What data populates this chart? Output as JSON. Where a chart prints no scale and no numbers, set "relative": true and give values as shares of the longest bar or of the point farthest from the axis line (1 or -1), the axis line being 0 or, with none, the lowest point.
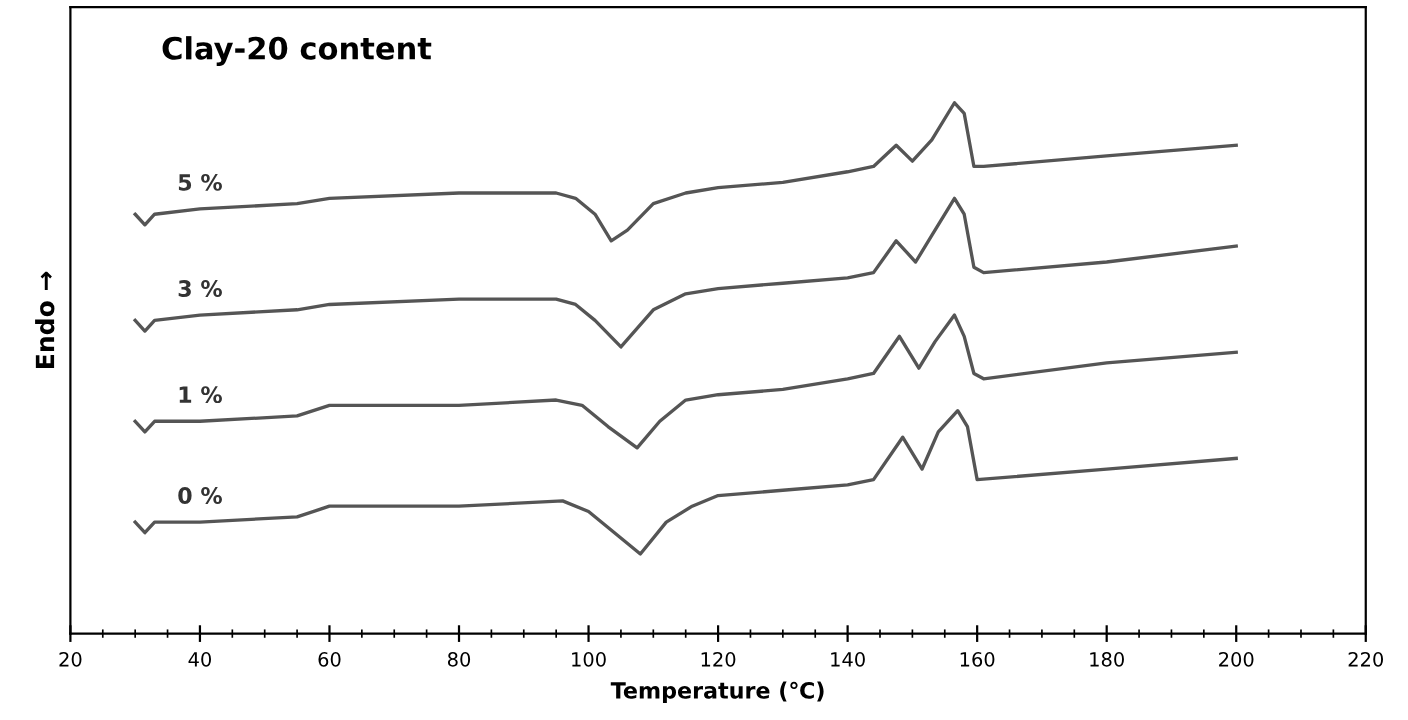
{
  "chart_data": {
    "type": "line",
    "relative": true,
    "title": "Clay-20 content",
    "xlabel": "Temperature (℃)",
    "ylabel": "Endo →",
    "xlim": [
      20,
      220
    ],
    "xticks": [
      20,
      40,
      60,
      80,
      100,
      120,
      140,
      160,
      180,
      200,
      220
    ],
    "legend": false,
    "grid": false,
    "marker": "none",
    "line_style": "solid",
    "tick_labels": "x",
    "series": [
      {
        "name": "5 %",
        "color": "#555555",
        "x": [
          30,
          31.5,
          33,
          40,
          55,
          60,
          80,
          95,
          98,
          101,
          103.5,
          106,
          110,
          115,
          120,
          130,
          140,
          144,
          147.5,
          150,
          153,
          156.5,
          158,
          159.5,
          161,
          180,
          200
        ],
        "values": [
          0.79,
          0.77,
          0.79,
          0.8,
          0.81,
          0.82,
          0.83,
          0.83,
          0.82,
          0.79,
          0.74,
          0.76,
          0.81,
          0.83,
          0.84,
          0.85,
          0.87,
          0.88,
          0.92,
          0.89,
          0.93,
          1.0,
          0.98,
          0.88,
          0.88,
          0.9,
          0.92
        ]
      },
      {
        "name": "3 %",
        "color": "#555555",
        "x": [
          30,
          31.5,
          33,
          40,
          55,
          60,
          80,
          95,
          98,
          101,
          105,
          110,
          115,
          120,
          130,
          140,
          144,
          147.5,
          150.5,
          153,
          156.5,
          158,
          159.5,
          161,
          180,
          200
        ],
        "values": [
          0.59,
          0.57,
          0.59,
          0.6,
          0.61,
          0.62,
          0.63,
          0.63,
          0.62,
          0.59,
          0.54,
          0.61,
          0.64,
          0.65,
          0.66,
          0.67,
          0.68,
          0.74,
          0.7,
          0.75,
          0.82,
          0.79,
          0.69,
          0.68,
          0.7,
          0.73
        ]
      },
      {
        "name": "1 %",
        "color": "#555555",
        "x": [
          30,
          31.5,
          33,
          40,
          55,
          60,
          80,
          95,
          99,
          103,
          107.5,
          111,
          115,
          120,
          130,
          140,
          144,
          148,
          151,
          153.5,
          156.5,
          158,
          159.5,
          161,
          180,
          200
        ],
        "values": [
          0.4,
          0.38,
          0.4,
          0.4,
          0.41,
          0.43,
          0.43,
          0.44,
          0.43,
          0.39,
          0.35,
          0.4,
          0.44,
          0.45,
          0.46,
          0.48,
          0.49,
          0.56,
          0.5,
          0.55,
          0.6,
          0.56,
          0.49,
          0.48,
          0.51,
          0.53
        ]
      },
      {
        "name": "0 %",
        "color": "#555555",
        "x": [
          30,
          31.5,
          33,
          40,
          55,
          60,
          80,
          96,
          100,
          104,
          108,
          112,
          116,
          120,
          130,
          140,
          144,
          148.5,
          151.5,
          154,
          157,
          158.5,
          160,
          180,
          200
        ],
        "values": [
          0.21,
          0.19,
          0.21,
          0.21,
          0.22,
          0.24,
          0.24,
          0.25,
          0.23,
          0.19,
          0.15,
          0.21,
          0.24,
          0.26,
          0.27,
          0.28,
          0.29,
          0.37,
          0.31,
          0.38,
          0.42,
          0.39,
          0.29,
          0.31,
          0.33
        ]
      }
    ]
  }
}
